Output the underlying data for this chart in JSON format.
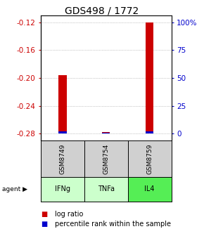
{
  "title": "GDS498 / 1772",
  "samples": [
    "GSM8749",
    "GSM8754",
    "GSM8759"
  ],
  "agents": [
    "IFNg",
    "TNFa",
    "IL4"
  ],
  "log_ratios": [
    -0.196,
    -0.278,
    -0.12
  ],
  "percentile_ranks": [
    2,
    0.5,
    2
  ],
  "ylim_left": [
    -0.29,
    -0.11
  ],
  "yticks_left": [
    -0.28,
    -0.24,
    -0.2,
    -0.16,
    -0.12
  ],
  "yticks_right": [
    0,
    25,
    50,
    75,
    100
  ],
  "bar_bottom": -0.28,
  "red_bar_color": "#cc0000",
  "blue_bar_color": "#0000cc",
  "agent_colors": [
    "#ccffcc",
    "#ccffcc",
    "#55ee55"
  ],
  "sample_bg": "#d0d0d0",
  "grid_color": "#888888",
  "left_tick_color": "#cc0000",
  "right_tick_color": "#0000cc",
  "title_fontsize": 10,
  "tick_fontsize": 7.5,
  "legend_fontsize": 7
}
